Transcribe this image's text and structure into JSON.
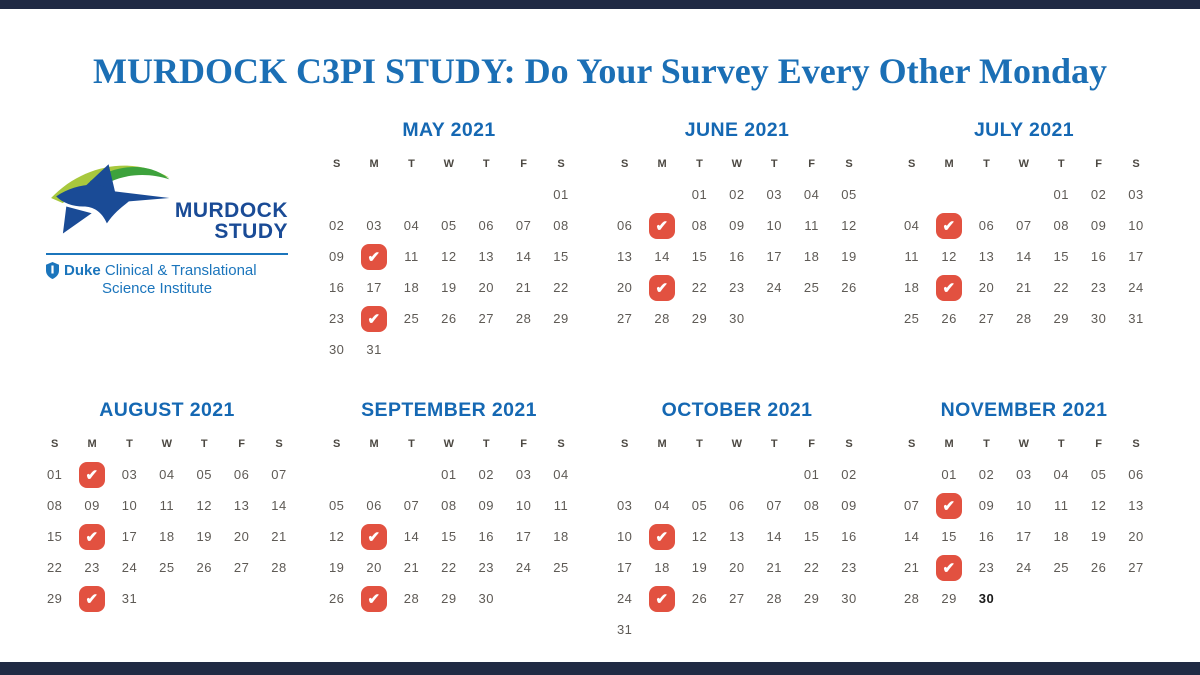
{
  "banner": {
    "title": "MURDOCK C3PI STUDY: Do Your Survey Every Other Monday"
  },
  "logo": {
    "name_line1": "MURDOCK",
    "name_line2": "STUDY",
    "org_line1_bold": "Duke",
    "org_line1_rest": " Clinical & Translational",
    "org_line2": "Science Institute"
  },
  "colors": {
    "title_blue": "#1B6FB5",
    "month_blue": "#1568B3",
    "day_text": "#5E5A55",
    "header_text": "#4C4842",
    "check_red": "#E25140",
    "navy_bar": "#202A44",
    "logo_navy": "#1A4B96",
    "logo_blue": "#1B75BC",
    "logo_green_light": "#A8C83D",
    "logo_green_dark": "#3DA23C"
  },
  "calendar": {
    "day_headers": [
      "S",
      "M",
      "T",
      "W",
      "T",
      "F",
      "S"
    ],
    "months": [
      {
        "name": "MAY 2021",
        "survey_mondays": [
          "10",
          "24"
        ],
        "weeks": [
          [
            "",
            "",
            "",
            "",
            "",
            "",
            "01"
          ],
          [
            "02",
            "03",
            "04",
            "05",
            "06",
            "07",
            "08"
          ],
          [
            "09",
            "*",
            "11",
            "12",
            "13",
            "14",
            "15"
          ],
          [
            "16",
            "17",
            "18",
            "19",
            "20",
            "21",
            "22"
          ],
          [
            "23",
            "*",
            "25",
            "26",
            "27",
            "28",
            "29"
          ],
          [
            "30",
            "31",
            "",
            "",
            "",
            "",
            ""
          ]
        ]
      },
      {
        "name": "JUNE 2021",
        "survey_mondays": [
          "07",
          "21"
        ],
        "weeks": [
          [
            "",
            "",
            "01",
            "02",
            "03",
            "04",
            "05"
          ],
          [
            "06",
            "*",
            "08",
            "09",
            "10",
            "11",
            "12"
          ],
          [
            "13",
            "14",
            "15",
            "16",
            "17",
            "18",
            "19"
          ],
          [
            "20",
            "*",
            "22",
            "23",
            "24",
            "25",
            "26"
          ],
          [
            "27",
            "28",
            "29",
            "30",
            "",
            "",
            ""
          ]
        ]
      },
      {
        "name": "JULY 2021",
        "survey_mondays": [
          "05",
          "19"
        ],
        "weeks": [
          [
            "",
            "",
            "",
            "",
            "01",
            "02",
            "03"
          ],
          [
            "04",
            "*",
            "06",
            "07",
            "08",
            "09",
            "10"
          ],
          [
            "11",
            "12",
            "13",
            "14",
            "15",
            "16",
            "17"
          ],
          [
            "18",
            "*",
            "20",
            "21",
            "22",
            "23",
            "24"
          ],
          [
            "25",
            "26",
            "27",
            "28",
            "29",
            "30",
            "31"
          ]
        ]
      },
      {
        "name": "AUGUST 2021",
        "survey_mondays": [
          "02",
          "16",
          "30"
        ],
        "weeks": [
          [
            "01",
            "*",
            "03",
            "04",
            "05",
            "06",
            "07"
          ],
          [
            "08",
            "09",
            "10",
            "11",
            "12",
            "13",
            "14"
          ],
          [
            "15",
            "*",
            "17",
            "18",
            "19",
            "20",
            "21"
          ],
          [
            "22",
            "23",
            "24",
            "25",
            "26",
            "27",
            "28"
          ],
          [
            "29",
            "*",
            "31",
            "",
            "",
            "",
            ""
          ]
        ]
      },
      {
        "name": "SEPTEMBER 2021",
        "survey_mondays": [
          "13",
          "27"
        ],
        "weeks": [
          [
            "",
            "",
            "",
            "01",
            "02",
            "03",
            "04"
          ],
          [
            "05",
            "06",
            "07",
            "08",
            "09",
            "10",
            "11"
          ],
          [
            "12",
            "*",
            "14",
            "15",
            "16",
            "17",
            "18"
          ],
          [
            "19",
            "20",
            "21",
            "22",
            "23",
            "24",
            "25"
          ],
          [
            "26",
            "*",
            "28",
            "29",
            "30",
            "",
            ""
          ]
        ]
      },
      {
        "name": "OCTOBER 2021",
        "survey_mondays": [
          "11",
          "25"
        ],
        "weeks": [
          [
            "",
            "",
            "",
            "",
            "",
            "01",
            "02"
          ],
          [
            "03",
            "04",
            "05",
            "06",
            "07",
            "08",
            "09"
          ],
          [
            "10",
            "*",
            "12",
            "13",
            "14",
            "15",
            "16"
          ],
          [
            "17",
            "18",
            "19",
            "20",
            "21",
            "22",
            "23"
          ],
          [
            "24",
            "*",
            "26",
            "27",
            "28",
            "29",
            "30"
          ],
          [
            "31",
            "",
            "",
            "",
            "",
            "",
            ""
          ]
        ]
      },
      {
        "name": "NOVEMBER 2021",
        "survey_mondays": [
          "08",
          "22"
        ],
        "weeks": [
          [
            "",
            "01",
            "02",
            "03",
            "04",
            "05",
            "06"
          ],
          [
            "07",
            "*",
            "09",
            "10",
            "11",
            "12",
            "13"
          ],
          [
            "14",
            "15",
            "16",
            "17",
            "18",
            "19",
            "20"
          ],
          [
            "21",
            "*",
            "23",
            "24",
            "25",
            "26",
            "27"
          ],
          [
            "28",
            "29",
            "#30",
            "",
            "",
            "",
            ""
          ]
        ]
      }
    ]
  }
}
